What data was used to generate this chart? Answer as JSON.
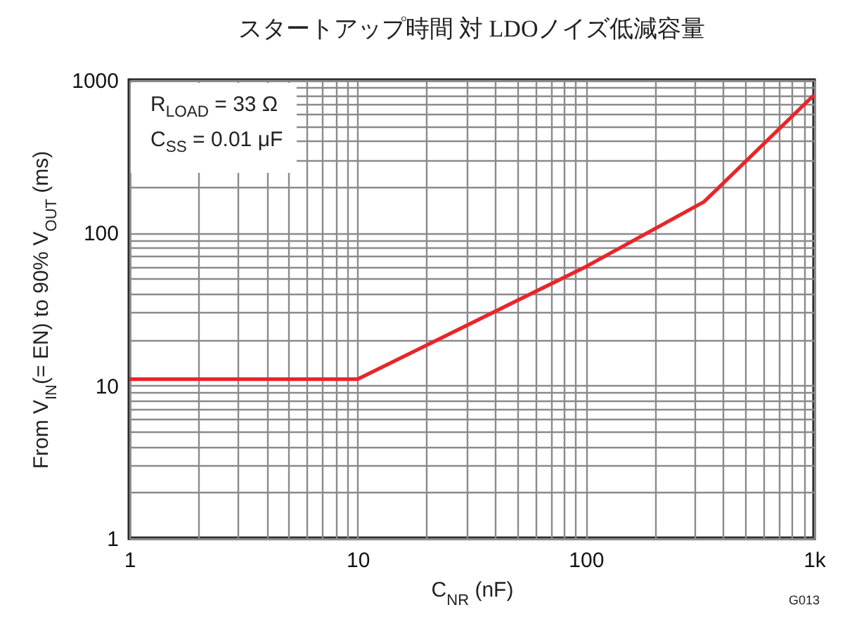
{
  "chart_data": {
    "type": "line",
    "title": "スタートアップ時間 対 LDOノイズ低減容量",
    "xlabel": "C$_{NR}$ (nF)",
    "ylabel": "From V$_{IN}$(= EN) to 90% V$_{OUT}$ (ms)",
    "annotations": [
      "R$_{LOAD}$ = 33 Ω",
      "C$_{SS}$ = 0.01 μF",
      "G013"
    ],
    "x": [
      1,
      10,
      100,
      330,
      1000
    ],
    "series": [
      {
        "color": "#e8262a",
        "values": [
          11,
          11,
          60,
          160,
          800
        ]
      }
    ],
    "xlim": [
      1,
      1000
    ],
    "ylim": [
      1,
      1000
    ],
    "log": "xy",
    "grid": true,
    "xticks": [
      1,
      {
        "value": 2,
        "label": null
      },
      {
        "value": 3,
        "label": null
      },
      {
        "value": 4,
        "label": null
      },
      {
        "value": 5,
        "label": null
      },
      {
        "value": 6,
        "label": null
      },
      {
        "value": 7,
        "label": null
      },
      {
        "value": 8,
        "label": null
      },
      {
        "value": 9,
        "label": null
      },
      10,
      {
        "value": 20,
        "label": null
      },
      {
        "value": 30,
        "label": null
      },
      {
        "value": 40,
        "label": null
      },
      {
        "value": 50,
        "label": null
      },
      {
        "value": 60,
        "label": null
      },
      {
        "value": 70,
        "label": null
      },
      {
        "value": 80,
        "label": null
      },
      {
        "value": 90,
        "label": null
      },
      100,
      {
        "value": 200,
        "label": null
      },
      {
        "value": 300,
        "label": null
      },
      {
        "value": 400,
        "label": null
      },
      {
        "value": 500,
        "label": null
      },
      {
        "value": 600,
        "label": null
      },
      {
        "value": 700,
        "label": null
      },
      {
        "value": 800,
        "label": null
      },
      {
        "value": 900,
        "label": null
      },
      {
        "value": 1000,
        "label": "1k"
      }
    ],
    "yticks": [
      1,
      {
        "value": 2,
        "label": null
      },
      {
        "value": 3,
        "label": null
      },
      {
        "value": 4,
        "label": null
      },
      {
        "value": 5,
        "label": null
      },
      {
        "value": 6,
        "label": null
      },
      {
        "value": 7,
        "label": null
      },
      {
        "value": 8,
        "label": null
      },
      {
        "value": 9,
        "label": null
      },
      10,
      {
        "value": 20,
        "label": null
      },
      {
        "value": 30,
        "label": null
      },
      {
        "value": 40,
        "label": null
      },
      {
        "value": 50,
        "label": null
      },
      {
        "value": 60,
        "label": null
      },
      {
        "value": 70,
        "label": null
      },
      {
        "value": 80,
        "label": null
      },
      {
        "value": 90,
        "label": null
      },
      100,
      {
        "value": 200,
        "label": null
      },
      {
        "value": 300,
        "label": null
      },
      {
        "value": 400,
        "label": null
      },
      {
        "value": 500,
        "label": null
      },
      {
        "value": 600,
        "label": null
      },
      {
        "value": 700,
        "label": null
      },
      {
        "value": 800,
        "label": null
      },
      {
        "value": 900,
        "label": null
      },
      1000
    ]
  }
}
